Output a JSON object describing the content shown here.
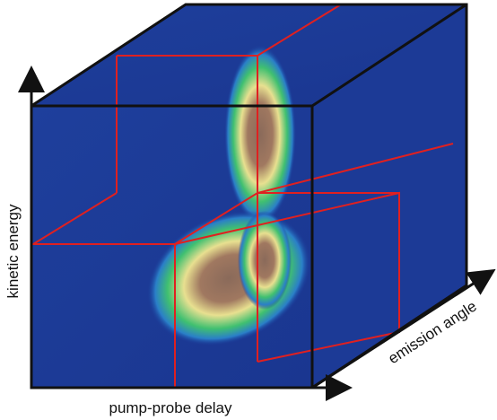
{
  "axes": {
    "vertical": "kinetic energy",
    "horizontal": "pump-probe delay",
    "depth": "emission angle"
  }
}
